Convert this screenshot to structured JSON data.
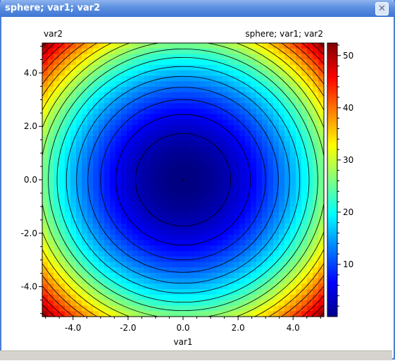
{
  "window": {
    "title": "sphere; var1; var2",
    "close_icon": "close-icon"
  },
  "chart_data": {
    "type": "heatmap",
    "subtype": "filled-contour",
    "function": "var1^2 + var2^2",
    "title": "sphere; var1; var2",
    "xlabel": "var1",
    "ylabel": "var2",
    "xlim": [
      -5.12,
      5.12
    ],
    "ylim": [
      -5.12,
      5.12
    ],
    "x_ticks": [
      -4.0,
      -2.0,
      0.0,
      2.0,
      4.0
    ],
    "y_ticks": [
      -4.0,
      -2.0,
      0.0,
      2.0,
      4.0
    ],
    "x_tick_labels": [
      "-4.0",
      "-2.0",
      "0.0",
      "2.0",
      "4.0"
    ],
    "y_tick_labels": [
      "-4.0",
      "-2.0",
      "0.0",
      "2.0",
      "4.0"
    ],
    "colorbar": {
      "range": [
        0,
        52.4
      ],
      "ticks": [
        10,
        20,
        30,
        40,
        50
      ],
      "tick_labels": [
        "10",
        "20",
        "30",
        "40",
        "50"
      ],
      "colormap": "jet"
    },
    "contour_levels": [
      3,
      6,
      9,
      12,
      15,
      18,
      21,
      24,
      27,
      30,
      33,
      36,
      39,
      42,
      45,
      48,
      51
    ],
    "minimum": {
      "x": 0.0,
      "y": 0.0,
      "z": 0.0
    },
    "grid": false,
    "legend": "colorbar-right"
  }
}
